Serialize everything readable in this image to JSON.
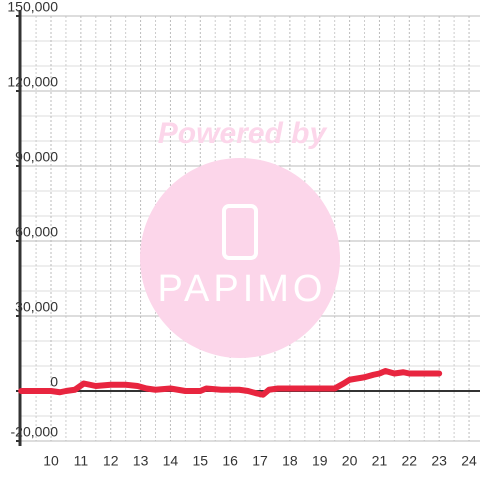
{
  "chart_data": {
    "type": "line",
    "watermark": "Powered by",
    "watermark_logo": "PAPIMO",
    "x": [
      9,
      10,
      10.3,
      10.5,
      10.8,
      11.1,
      11.3,
      11.5,
      12,
      12.5,
      12.9,
      13.2,
      13.5,
      14,
      14.5,
      15,
      15.2,
      15.7,
      16.3,
      16.6,
      16.9,
      17.1,
      17.3,
      17.6,
      18,
      19,
      19.5,
      19.8,
      20,
      20.5,
      20.8,
      21,
      21.2,
      21.5,
      21.8,
      22,
      23
    ],
    "series": [
      {
        "color": "#e8253f",
        "values": [
          0,
          0,
          -500,
          0,
          500,
          3000,
          2500,
          2000,
          2500,
          2500,
          2000,
          1000,
          500,
          1000,
          0,
          0,
          1000,
          500,
          500,
          0,
          -1000,
          -1500,
          500,
          1000,
          1000,
          1000,
          1000,
          3000,
          4500,
          5500,
          6500,
          7000,
          8000,
          7000,
          7500,
          7000,
          7000
        ]
      }
    ],
    "xlim": [
      9,
      24.4
    ],
    "xticks": [
      10,
      11,
      12,
      13,
      14,
      15,
      16,
      17,
      18,
      19,
      20,
      21,
      22,
      23,
      24
    ],
    "minor_xticks": [
      9.5,
      10.5,
      11.5,
      12.5,
      13.5,
      14.5,
      15.5,
      16.5,
      17.5,
      18.5,
      19.5,
      20.5,
      21.5,
      22.5,
      23.5
    ],
    "ylim": [
      -20000,
      150000
    ],
    "yticks": [
      {
        "value": -20000,
        "label": "-20,000"
      },
      0,
      {
        "value": 30000,
        "label": "30,000"
      },
      {
        "value": 60000,
        "label": "60,000"
      },
      {
        "value": 90000,
        "label": "90,000"
      },
      {
        "value": 120000,
        "label": "120,000"
      },
      {
        "value": 150000,
        "label": "150,000"
      }
    ],
    "minor_yticks": [
      -10000,
      10000,
      20000,
      40000,
      50000,
      70000,
      80000,
      100000,
      110000,
      130000,
      140000
    ],
    "grid": true
  }
}
